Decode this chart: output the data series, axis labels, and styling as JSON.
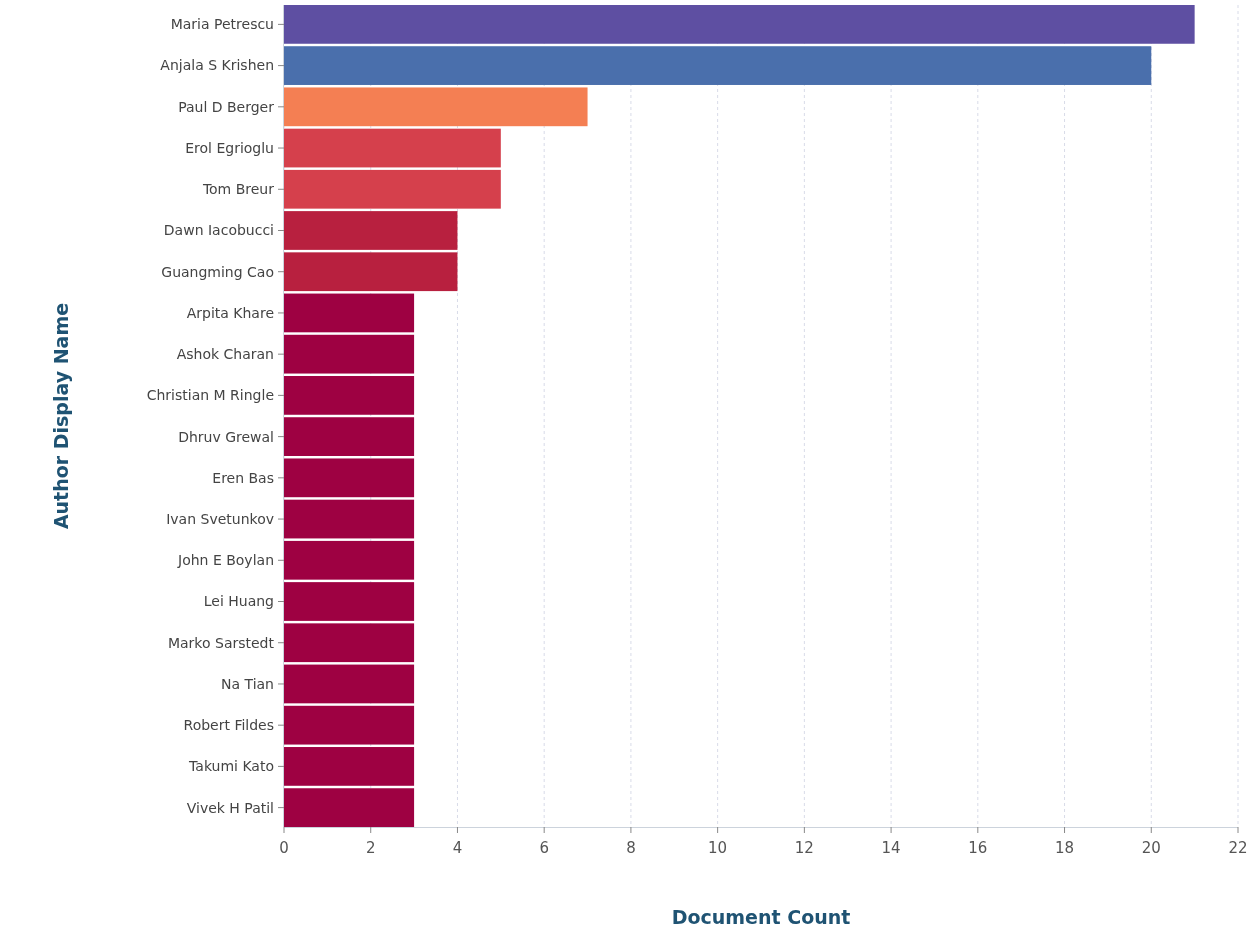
{
  "chart_data": {
    "type": "bar",
    "orientation": "horizontal",
    "xlabel": "Document Count",
    "ylabel": "Author Display Name",
    "categories": [
      "Maria Petrescu",
      "Anjala S Krishen",
      "Paul D Berger",
      "Erol Egrioglu",
      "Tom Breur",
      "Dawn Iacobucci",
      "Guangming Cao",
      "Arpita Khare",
      "Ashok Charan",
      "Christian M Ringle",
      "Dhruv Grewal",
      "Eren Bas",
      "Ivan Svetunkov",
      "John E Boylan",
      "Lei Huang",
      "Marko Sarstedt",
      "Na Tian",
      "Robert Fildes",
      "Takumi Kato",
      "Vivek H Patil"
    ],
    "values": [
      21,
      20,
      7,
      5,
      5,
      4,
      4,
      3,
      3,
      3,
      3,
      3,
      3,
      3,
      3,
      3,
      3,
      3,
      3,
      3
    ],
    "colors": [
      "#5e4fa2",
      "#4a6fac",
      "#f47f53",
      "#d5404c",
      "#d5404c",
      "#b8203f",
      "#b8203f",
      "#9e0142",
      "#9e0142",
      "#9e0142",
      "#9e0142",
      "#9e0142",
      "#9e0142",
      "#9e0142",
      "#9e0142",
      "#9e0142",
      "#9e0142",
      "#9e0142",
      "#9e0142",
      "#9e0142"
    ],
    "xlim": [
      0,
      22
    ],
    "xticks": [
      0,
      2,
      4,
      6,
      8,
      10,
      12,
      14,
      16,
      18,
      20,
      22
    ],
    "grid": "x"
  }
}
